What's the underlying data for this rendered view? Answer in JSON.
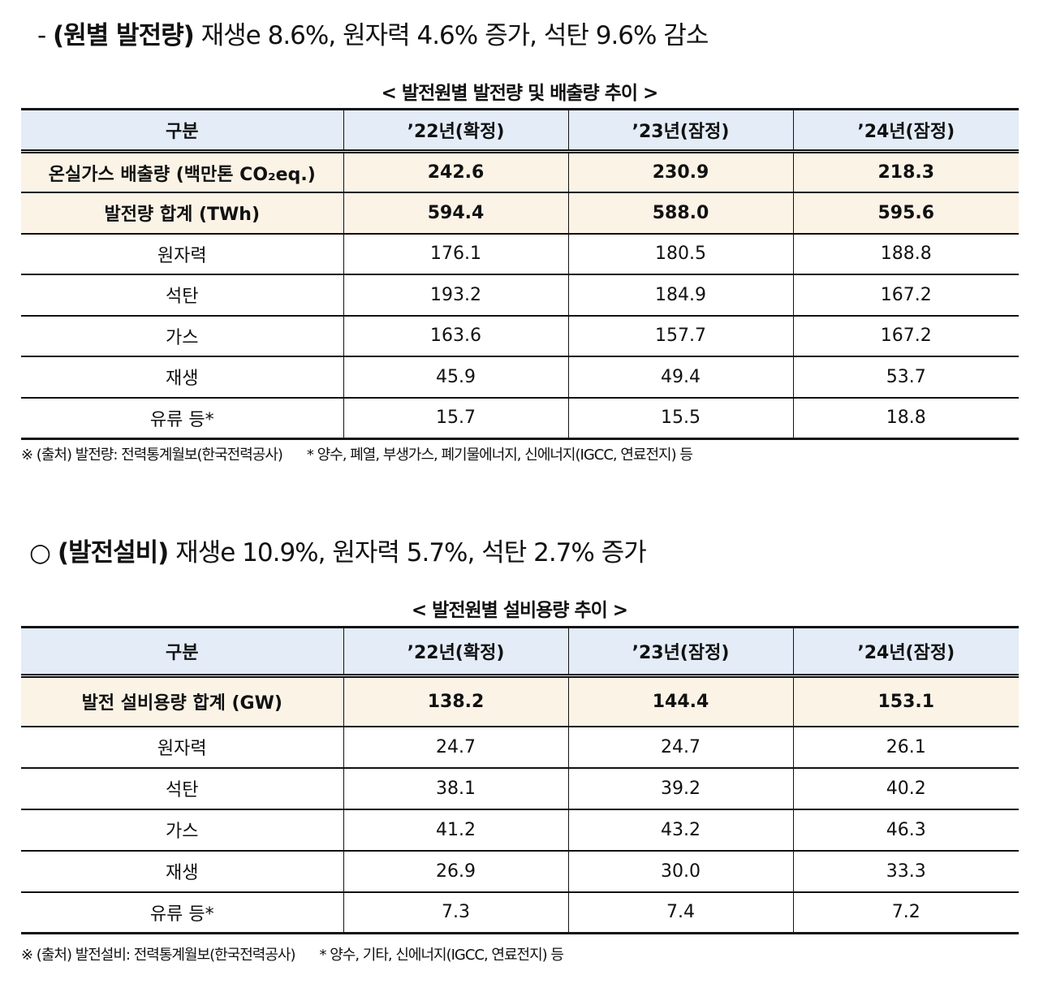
{
  "section1": {
    "prefix": "- ",
    "bold": "(원별 발전량)",
    "rest": " 재생e 8.6%, 원자력 4.6% 증가, 석탄 9.6% 감소"
  },
  "table1": {
    "caption": "< 발전원별 발전량 및 배출량 추이 >",
    "headers": [
      "구분",
      "’22년(확정)",
      "’23년(잠정)",
      "’24년(잠정)"
    ],
    "rows": [
      {
        "label": "온실가스 배출량 (백만톤 CO₂eq.)",
        "values": [
          "242.6",
          "230.9",
          "218.3"
        ],
        "highlight": true
      },
      {
        "label": "발전량 합계 (TWh)",
        "values": [
          "594.4",
          "588.0",
          "595.6"
        ],
        "highlight": true
      },
      {
        "label": "원자력",
        "values": [
          "176.1",
          "180.5",
          "188.8"
        ]
      },
      {
        "label": "석탄",
        "values": [
          "193.2",
          "184.9",
          "167.2"
        ]
      },
      {
        "label": "가스",
        "values": [
          "163.6",
          "157.7",
          "167.2"
        ]
      },
      {
        "label": "재생",
        "values": [
          "45.9",
          "49.4",
          "53.7"
        ]
      },
      {
        "label": "유류 등*",
        "values": [
          "15.7",
          "15.5",
          "18.8"
        ]
      }
    ],
    "note_source": "※ (출처) 발전량: 전력통계월보(한국전력공사)",
    "note_footnote": "* 양수, 폐열, 부생가스, 폐기물에너지, 신에너지(IGCC, 연료전지) 등"
  },
  "section2": {
    "prefix": "○ ",
    "bold": "(발전설비)",
    "rest": " 재생e 10.9%, 원자력 5.7%, 석탄 2.7% 증가"
  },
  "table2": {
    "caption": "< 발전원별 설비용량 추이 >",
    "headers": [
      "구분",
      "’22년(확정)",
      "’23년(잠정)",
      "’24년(잠정)"
    ],
    "rows": [
      {
        "label": "발전 설비용량 합계 (GW)",
        "values": [
          "138.2",
          "144.4",
          "153.1"
        ],
        "highlight": true
      },
      {
        "label": "원자력",
        "values": [
          "24.7",
          "24.7",
          "26.1"
        ]
      },
      {
        "label": "석탄",
        "values": [
          "38.1",
          "39.2",
          "40.2"
        ]
      },
      {
        "label": "가스",
        "values": [
          "41.2",
          "43.2",
          "46.3"
        ]
      },
      {
        "label": "재생",
        "values": [
          "26.9",
          "30.0",
          "33.3"
        ]
      },
      {
        "label": "유류 등*",
        "values": [
          "7.3",
          "7.4",
          "7.2"
        ]
      }
    ],
    "note_source": "※ (출처) 발전설비: 전력통계월보(한국전력공사)",
    "note_footnote": "* 양수, 기타, 신에너지(IGCC, 연료전지) 등"
  }
}
